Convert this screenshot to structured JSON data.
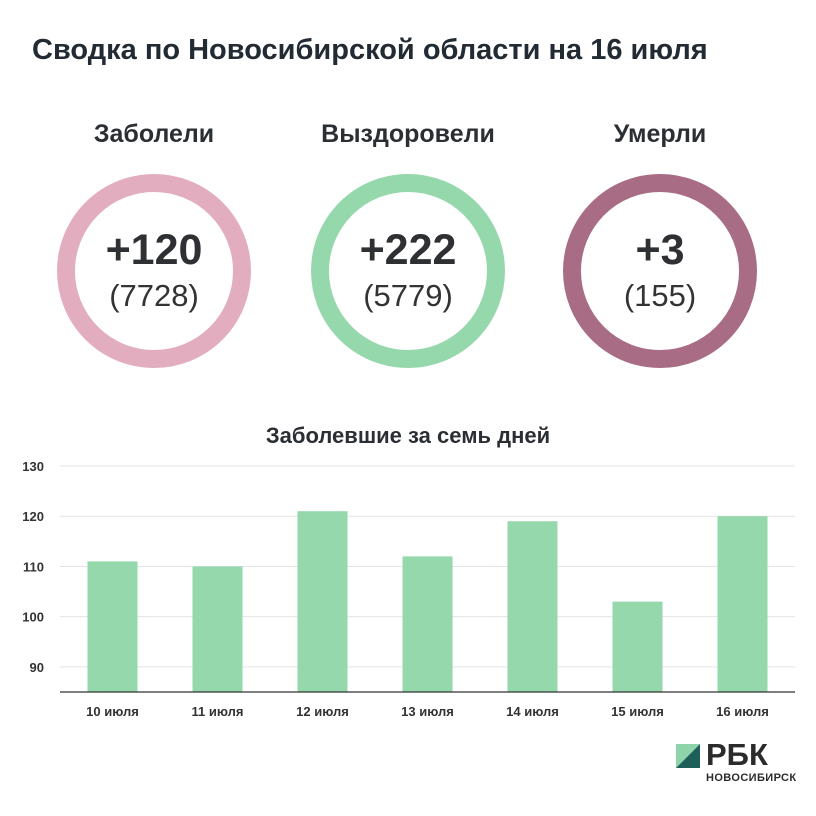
{
  "title": "Сводка по Новосибирской области на 16 июля",
  "stats": [
    {
      "label": "Заболели",
      "delta": "+120",
      "total": "(7728)",
      "color": "#e2aebf"
    },
    {
      "label": "Выздоровели",
      "delta": "+222",
      "total": "(5779)",
      "color": "#94d8ac"
    },
    {
      "label": "Умерли",
      "delta": "+3",
      "total": "(155)",
      "color": "#a86c84"
    }
  ],
  "chart_data": {
    "type": "bar",
    "title": "Заболевшие за семь дней",
    "categories": [
      "10 июля",
      "11 июля",
      "12 июля",
      "13 июля",
      "14 июля",
      "15 июля",
      "16 июля"
    ],
    "values": [
      111,
      110,
      121,
      112,
      119,
      103,
      120
    ],
    "yticks": [
      90,
      100,
      110,
      120,
      130
    ],
    "ylim": [
      85,
      130
    ],
    "grid": true,
    "bar_color": "#94d8ac"
  },
  "logo": {
    "name": "РБК",
    "subtitle": "НОВОСИБИРСК",
    "mark_light": "#8fd3ab",
    "mark_dark": "#1e5f5a"
  }
}
